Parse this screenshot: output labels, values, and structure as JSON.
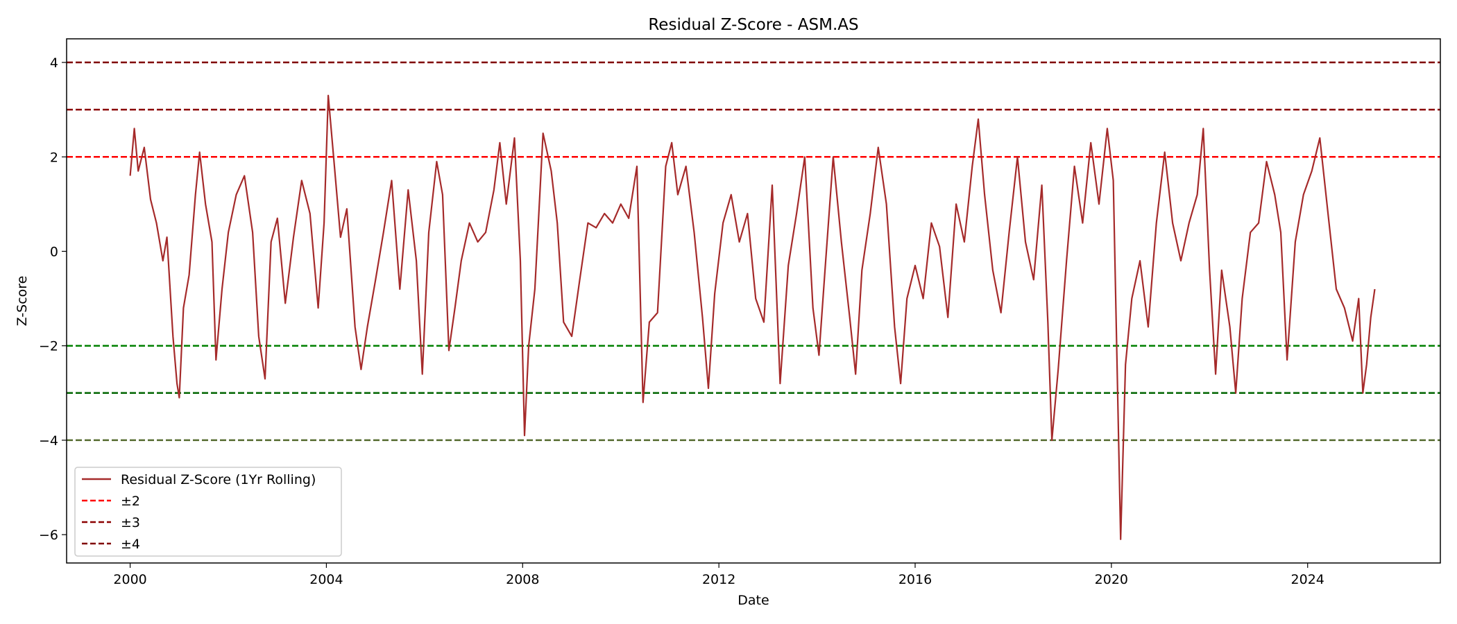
{
  "chart_data": {
    "type": "line",
    "title": "Residual Z-Score - ASM.AS",
    "xlabel": "Date",
    "ylabel": "Z-Score",
    "xlim": [
      "1998-09-15",
      "2026-09-15"
    ],
    "ylim": [
      -6.6,
      4.5
    ],
    "x_ticks": [
      {
        "date": "2000-01-01",
        "label": "2000"
      },
      {
        "date": "2004-01-01",
        "label": "2004"
      },
      {
        "date": "2008-01-01",
        "label": "2008"
      },
      {
        "date": "2012-01-01",
        "label": "2012"
      },
      {
        "date": "2016-01-01",
        "label": "2016"
      },
      {
        "date": "2020-01-01",
        "label": "2020"
      },
      {
        "date": "2024-01-01",
        "label": "2024"
      }
    ],
    "y_ticks": [
      {
        "value": 4,
        "label": "4"
      },
      {
        "value": 2,
        "label": "2"
      },
      {
        "value": 0,
        "label": "0"
      },
      {
        "value": -2,
        "label": "−2"
      },
      {
        "value": -4,
        "label": "−4"
      },
      {
        "value": -6,
        "label": "−6"
      }
    ],
    "grid": false,
    "legend_position": "lower-left",
    "series": [
      {
        "name": "Residual Z-Score (1Yr Rolling)",
        "color": "#a52a2a",
        "style": "solid",
        "points": [
          [
            "2000-01-01",
            1.6
          ],
          [
            "2000-02-01",
            2.6
          ],
          [
            "2000-03-01",
            1.7
          ],
          [
            "2000-04-15",
            2.2
          ],
          [
            "2000-06-01",
            1.1
          ],
          [
            "2000-07-15",
            0.6
          ],
          [
            "2000-09-01",
            -0.2
          ],
          [
            "2000-10-01",
            0.3
          ],
          [
            "2000-11-15",
            -1.8
          ],
          [
            "2000-12-15",
            -2.8
          ],
          [
            "2001-01-01",
            -3.1
          ],
          [
            "2001-02-01",
            -1.2
          ],
          [
            "2001-03-15",
            -0.5
          ],
          [
            "2001-05-01",
            1.2
          ],
          [
            "2001-06-01",
            2.1
          ],
          [
            "2001-07-15",
            1.0
          ],
          [
            "2001-09-01",
            0.2
          ],
          [
            "2001-10-01",
            -2.3
          ],
          [
            "2001-11-15",
            -0.8
          ],
          [
            "2002-01-01",
            0.4
          ],
          [
            "2002-03-01",
            1.2
          ],
          [
            "2002-05-01",
            1.6
          ],
          [
            "2002-07-01",
            0.4
          ],
          [
            "2002-08-15",
            -1.8
          ],
          [
            "2002-10-01",
            -2.7
          ],
          [
            "2002-11-15",
            0.2
          ],
          [
            "2003-01-01",
            0.7
          ],
          [
            "2003-03-01",
            -1.1
          ],
          [
            "2003-05-01",
            0.3
          ],
          [
            "2003-07-01",
            1.5
          ],
          [
            "2003-09-01",
            0.8
          ],
          [
            "2003-11-01",
            -1.2
          ],
          [
            "2003-12-15",
            0.6
          ],
          [
            "2004-01-15",
            3.3
          ],
          [
            "2004-03-01",
            1.8
          ],
          [
            "2004-04-15",
            0.3
          ],
          [
            "2004-06-01",
            0.9
          ],
          [
            "2004-08-01",
            -1.6
          ],
          [
            "2004-09-15",
            -2.5
          ],
          [
            "2004-11-01",
            -1.6
          ],
          [
            "2005-01-01",
            -0.6
          ],
          [
            "2005-03-01",
            0.4
          ],
          [
            "2005-05-01",
            1.5
          ],
          [
            "2005-07-01",
            -0.8
          ],
          [
            "2005-09-01",
            1.3
          ],
          [
            "2005-11-01",
            -0.2
          ],
          [
            "2005-12-15",
            -2.6
          ],
          [
            "2006-02-01",
            0.4
          ],
          [
            "2006-04-01",
            1.9
          ],
          [
            "2006-05-15",
            1.2
          ],
          [
            "2006-07-01",
            -2.1
          ],
          [
            "2006-08-15",
            -1.2
          ],
          [
            "2006-10-01",
            -0.2
          ],
          [
            "2006-12-01",
            0.6
          ],
          [
            "2007-02-01",
            0.2
          ],
          [
            "2007-04-01",
            0.4
          ],
          [
            "2007-06-01",
            1.3
          ],
          [
            "2007-07-15",
            2.3
          ],
          [
            "2007-09-01",
            1.0
          ],
          [
            "2007-11-01",
            2.4
          ],
          [
            "2007-12-15",
            -0.2
          ],
          [
            "2008-01-15",
            -3.9
          ],
          [
            "2008-02-15",
            -2.0
          ],
          [
            "2008-04-01",
            -0.8
          ],
          [
            "2008-06-01",
            2.5
          ],
          [
            "2008-08-01",
            1.7
          ],
          [
            "2008-09-15",
            0.6
          ],
          [
            "2008-11-01",
            -1.5
          ],
          [
            "2009-01-01",
            -1.8
          ],
          [
            "2009-03-01",
            -0.6
          ],
          [
            "2009-05-01",
            0.6
          ],
          [
            "2009-07-01",
            0.5
          ],
          [
            "2009-09-01",
            0.8
          ],
          [
            "2009-11-01",
            0.6
          ],
          [
            "2010-01-01",
            1.0
          ],
          [
            "2010-03-01",
            0.7
          ],
          [
            "2010-05-01",
            1.8
          ],
          [
            "2010-06-15",
            -3.2
          ],
          [
            "2010-08-01",
            -1.5
          ],
          [
            "2010-10-01",
            -1.3
          ],
          [
            "2010-12-01",
            1.8
          ],
          [
            "2011-01-15",
            2.3
          ],
          [
            "2011-03-01",
            1.2
          ],
          [
            "2011-05-01",
            1.8
          ],
          [
            "2011-07-01",
            0.4
          ],
          [
            "2011-09-01",
            -1.4
          ],
          [
            "2011-10-15",
            -2.9
          ],
          [
            "2011-12-01",
            -0.9
          ],
          [
            "2012-02-01",
            0.6
          ],
          [
            "2012-04-01",
            1.2
          ],
          [
            "2012-06-01",
            0.2
          ],
          [
            "2012-08-01",
            0.8
          ],
          [
            "2012-10-01",
            -1.0
          ],
          [
            "2012-12-01",
            -1.5
          ],
          [
            "2013-02-01",
            1.4
          ],
          [
            "2013-04-01",
            -2.8
          ],
          [
            "2013-06-01",
            -0.3
          ],
          [
            "2013-08-01",
            0.8
          ],
          [
            "2013-10-01",
            2.0
          ],
          [
            "2013-12-01",
            -1.2
          ],
          [
            "2014-01-15",
            -2.2
          ],
          [
            "2014-03-01",
            -0.4
          ],
          [
            "2014-05-01",
            2.0
          ],
          [
            "2014-07-01",
            0.2
          ],
          [
            "2014-09-01",
            -1.4
          ],
          [
            "2014-10-15",
            -2.6
          ],
          [
            "2014-12-01",
            -0.4
          ],
          [
            "2015-02-01",
            0.8
          ],
          [
            "2015-04-01",
            2.2
          ],
          [
            "2015-06-01",
            1.0
          ],
          [
            "2015-08-01",
            -1.6
          ],
          [
            "2015-09-15",
            -2.8
          ],
          [
            "2015-11-01",
            -1.0
          ],
          [
            "2016-01-01",
            -0.3
          ],
          [
            "2016-03-01",
            -1.0
          ],
          [
            "2016-05-01",
            0.6
          ],
          [
            "2016-07-01",
            0.1
          ],
          [
            "2016-09-01",
            -1.4
          ],
          [
            "2016-11-01",
            1.0
          ],
          [
            "2017-01-01",
            0.2
          ],
          [
            "2017-03-01",
            1.8
          ],
          [
            "2017-04-15",
            2.8
          ],
          [
            "2017-06-01",
            1.2
          ],
          [
            "2017-08-01",
            -0.4
          ],
          [
            "2017-10-01",
            -1.3
          ],
          [
            "2017-12-01",
            0.4
          ],
          [
            "2018-02-01",
            2.0
          ],
          [
            "2018-04-01",
            0.2
          ],
          [
            "2018-06-01",
            -0.6
          ],
          [
            "2018-08-01",
            1.4
          ],
          [
            "2018-09-15",
            -1.5
          ],
          [
            "2018-10-15",
            -4.0
          ],
          [
            "2018-12-01",
            -2.5
          ],
          [
            "2019-02-01",
            -0.2
          ],
          [
            "2019-04-01",
            1.8
          ],
          [
            "2019-06-01",
            0.6
          ],
          [
            "2019-08-01",
            2.3
          ],
          [
            "2019-10-01",
            1.0
          ],
          [
            "2019-12-01",
            2.6
          ],
          [
            "2020-01-15",
            1.5
          ],
          [
            "2020-03-10",
            -6.1
          ],
          [
            "2020-04-15",
            -2.4
          ],
          [
            "2020-06-01",
            -1.0
          ],
          [
            "2020-08-01",
            -0.2
          ],
          [
            "2020-10-01",
            -1.6
          ],
          [
            "2020-12-01",
            0.6
          ],
          [
            "2021-02-01",
            2.1
          ],
          [
            "2021-04-01",
            0.6
          ],
          [
            "2021-06-01",
            -0.2
          ],
          [
            "2021-08-01",
            0.6
          ],
          [
            "2021-10-01",
            1.2
          ],
          [
            "2021-11-15",
            2.6
          ],
          [
            "2022-01-01",
            -0.4
          ],
          [
            "2022-02-15",
            -2.6
          ],
          [
            "2022-04-01",
            -0.4
          ],
          [
            "2022-06-01",
            -1.6
          ],
          [
            "2022-07-15",
            -3.0
          ],
          [
            "2022-09-01",
            -1.0
          ],
          [
            "2022-11-01",
            0.4
          ],
          [
            "2023-01-01",
            0.6
          ],
          [
            "2023-03-01",
            1.9
          ],
          [
            "2023-05-01",
            1.2
          ],
          [
            "2023-06-15",
            0.4
          ],
          [
            "2023-08-01",
            -2.3
          ],
          [
            "2023-10-01",
            0.2
          ],
          [
            "2023-12-01",
            1.2
          ],
          [
            "2024-02-01",
            1.7
          ],
          [
            "2024-04-01",
            2.4
          ],
          [
            "2024-06-01",
            0.8
          ],
          [
            "2024-08-01",
            -0.8
          ],
          [
            "2024-10-01",
            -1.2
          ],
          [
            "2024-12-01",
            -1.9
          ],
          [
            "2025-01-15",
            -1.0
          ],
          [
            "2025-02-15",
            -3.0
          ],
          [
            "2025-03-15",
            -2.4
          ],
          [
            "2025-04-15",
            -1.4
          ],
          [
            "2025-05-15",
            -0.8
          ]
        ]
      }
    ],
    "reference_lines": [
      {
        "value": 2,
        "color": "#ff0000",
        "style": "dashed",
        "legend": "±2"
      },
      {
        "value": -2,
        "color": "#008000",
        "style": "dashed",
        "legend": ""
      },
      {
        "value": 3,
        "color": "#8b0000",
        "style": "dashed",
        "legend": "±3"
      },
      {
        "value": -3,
        "color": "#006400",
        "style": "dashed",
        "legend": ""
      },
      {
        "value": 4,
        "color": "#800000",
        "style": "dashed",
        "legend": "±4"
      },
      {
        "value": -4,
        "color": "#556b2f",
        "style": "dashed",
        "legend": ""
      }
    ],
    "legend": [
      {
        "label": "Residual Z-Score (1Yr Rolling)",
        "color": "#a52a2a",
        "style": "solid"
      },
      {
        "label": "±2",
        "color": "#ff0000",
        "style": "dashed"
      },
      {
        "label": "±3",
        "color": "#8b0000",
        "style": "dashed"
      },
      {
        "label": "±4",
        "color": "#800000",
        "style": "dashed"
      }
    ]
  }
}
